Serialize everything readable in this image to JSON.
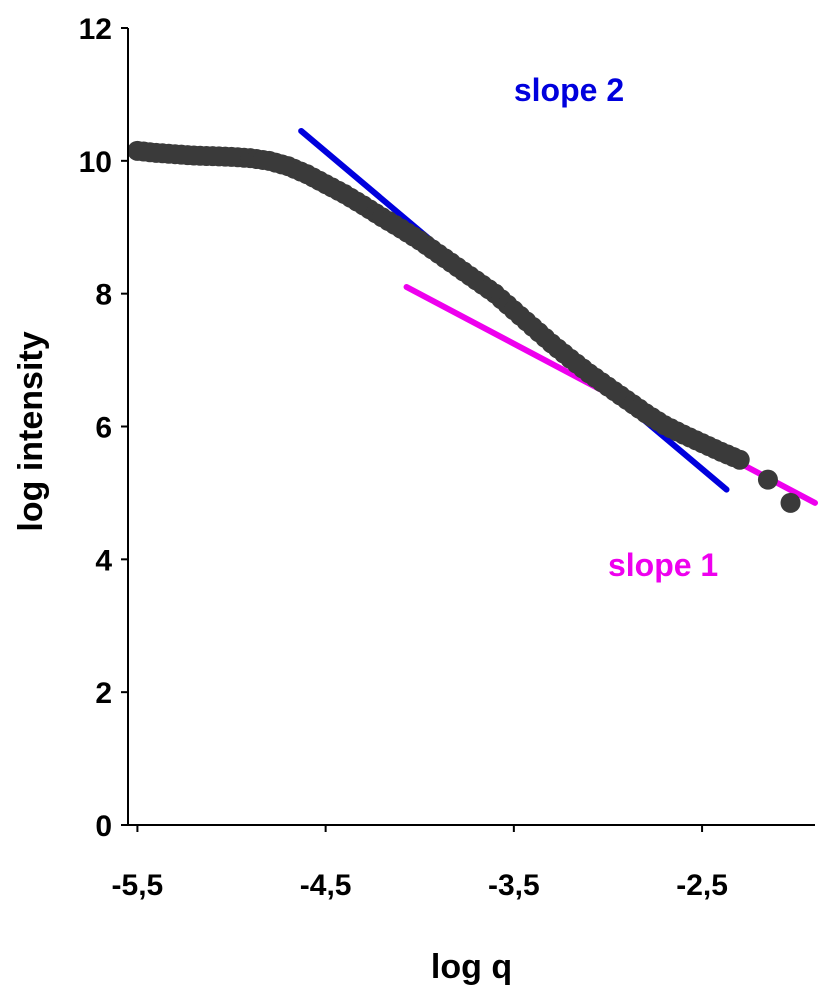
{
  "chart_data": {
    "type": "scatter",
    "title": "",
    "xlabel": "log q",
    "ylabel": "log intensity",
    "xlim": [
      -5.55,
      -1.9
    ],
    "ylim": [
      0,
      12
    ],
    "x_ticks": [
      -5.5,
      -4.5,
      -3.5,
      -2.5
    ],
    "x_tick_labels": [
      "-5,5",
      "-4,5",
      "-3,5",
      "-2,5"
    ],
    "y_ticks": [
      0,
      2,
      4,
      6,
      8,
      10,
      12
    ],
    "y_tick_labels": [
      "0",
      "2",
      "4",
      "6",
      "8",
      "10",
      "12"
    ],
    "grid": false,
    "legend": "none",
    "series": [
      {
        "kind": "points",
        "color": "#3a3a3a",
        "x": [
          -5.5,
          -5.4,
          -5.3,
          -5.2,
          -5.1,
          -5.0,
          -4.9,
          -4.8,
          -4.7,
          -4.6,
          -4.5,
          -4.4,
          -4.3,
          -4.2,
          -4.1,
          -4.0,
          -3.9,
          -3.8,
          -3.7,
          -3.6,
          -3.5,
          -3.4,
          -3.3,
          -3.2,
          -3.1,
          -3.0,
          -2.9,
          -2.8,
          -2.7,
          -2.6,
          -2.5,
          -2.4,
          -2.3,
          -2.15,
          -2.03
        ],
        "y": [
          10.15,
          10.12,
          10.1,
          10.08,
          10.07,
          10.06,
          10.04,
          10.0,
          9.92,
          9.8,
          9.65,
          9.5,
          9.33,
          9.15,
          8.98,
          8.8,
          8.6,
          8.4,
          8.2,
          8.0,
          7.75,
          7.5,
          7.25,
          7.02,
          6.8,
          6.6,
          6.4,
          6.2,
          6.02,
          5.88,
          5.75,
          5.62,
          5.5,
          5.2,
          4.85
        ]
      },
      {
        "kind": "line",
        "color": "#0000dd",
        "x": [
          -4.63,
          -2.37
        ],
        "y": [
          10.45,
          5.05
        ]
      },
      {
        "kind": "line",
        "color": "#ee00ee",
        "x": [
          -4.07,
          -1.9
        ],
        "y": [
          8.1,
          4.85
        ]
      },
      {
        "kind": "line",
        "color": "#000000",
        "x": [
          -3.65,
          -3.22
        ],
        "y": [
          8.05,
          7.1
        ]
      },
      {
        "kind": "line",
        "color": "#000000",
        "x": [
          -2.7,
          -2.37
        ],
        "y": [
          5.95,
          5.55
        ]
      }
    ],
    "annotations": [
      {
        "text": "slope 2",
        "x": -3.5,
        "y": 10.9,
        "color": "#0000dd"
      },
      {
        "text": "slope 1",
        "x": -3.0,
        "y": 3.75,
        "color": "#ee00ee"
      }
    ]
  }
}
